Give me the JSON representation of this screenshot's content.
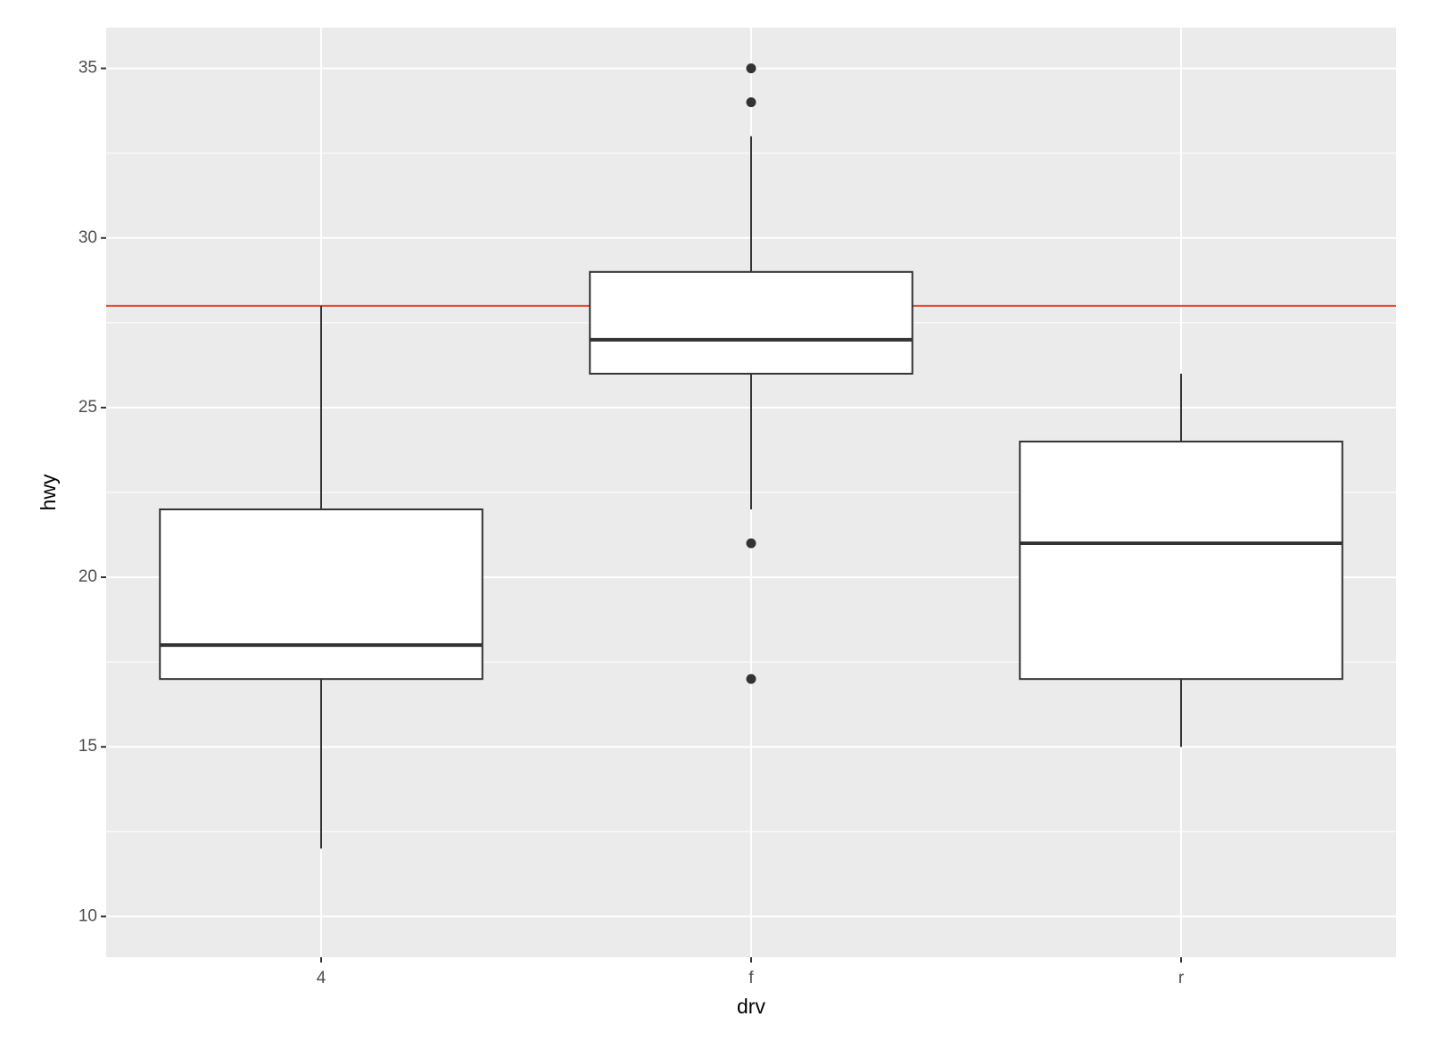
{
  "chart_data": {
    "type": "box",
    "x_label": "drv",
    "y_label": "hwy",
    "categories": [
      "4",
      "f",
      "r"
    ],
    "boxes": [
      {
        "whisker_low": 12,
        "q1": 17,
        "median": 18,
        "q3": 22,
        "whisker_high": 28,
        "outliers": []
      },
      {
        "whisker_low": 22,
        "q1": 26,
        "median": 27,
        "q3": 29,
        "whisker_high": 33,
        "outliers": [
          35,
          34,
          21,
          17
        ]
      },
      {
        "whisker_low": 15,
        "q1": 17,
        "median": 21,
        "q3": 24,
        "whisker_high": 26,
        "outliers": []
      }
    ],
    "box_fill": "#ffffff",
    "box_color": "#333333",
    "hline": {
      "value": 28,
      "color": "#e8452c"
    },
    "ylim": [
      8.8,
      36.2
    ],
    "yticks": [
      10,
      15,
      20,
      25,
      30,
      35
    ],
    "grid": true
  }
}
